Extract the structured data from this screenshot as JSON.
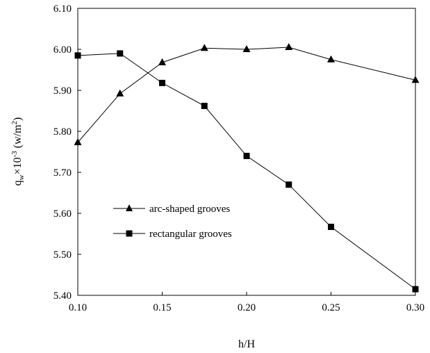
{
  "chart_data": {
    "type": "line",
    "xlabel": "h/H",
    "ylabel": {
      "base": "q",
      "sub": "w",
      "times": "×10",
      "exp": "-3",
      "unit_open": " (w/m",
      "unit_exp": "2",
      "unit_close": ")"
    },
    "xlim": [
      0.1,
      0.3
    ],
    "ylim": [
      5.4,
      6.1
    ],
    "xticks": [
      "0.10",
      "0.15",
      "0.20",
      "0.25",
      "0.30"
    ],
    "xtick_values": [
      0.1,
      0.15,
      0.2,
      0.25,
      0.3
    ],
    "yticks": [
      "5.40",
      "5.50",
      "5.60",
      "5.70",
      "5.80",
      "5.90",
      "6.00",
      "6.10"
    ],
    "ytick_values": [
      5.4,
      5.5,
      5.6,
      5.7,
      5.8,
      5.9,
      6.0,
      6.1
    ],
    "grid": false,
    "legend_position": "center-left",
    "series": [
      {
        "name": "arc-shaped grooves",
        "marker": "triangle",
        "x": [
          0.1,
          0.125,
          0.15,
          0.175,
          0.2,
          0.225,
          0.25,
          0.3
        ],
        "y": [
          5.773,
          5.892,
          5.968,
          6.003,
          6.0,
          6.005,
          5.975,
          5.925
        ]
      },
      {
        "name": "rectangular grooves",
        "marker": "square",
        "x": [
          0.1,
          0.125,
          0.15,
          0.175,
          0.2,
          0.225,
          0.25,
          0.3
        ],
        "y": [
          5.985,
          5.99,
          5.918,
          5.862,
          5.74,
          5.67,
          5.567,
          5.415
        ]
      }
    ]
  }
}
